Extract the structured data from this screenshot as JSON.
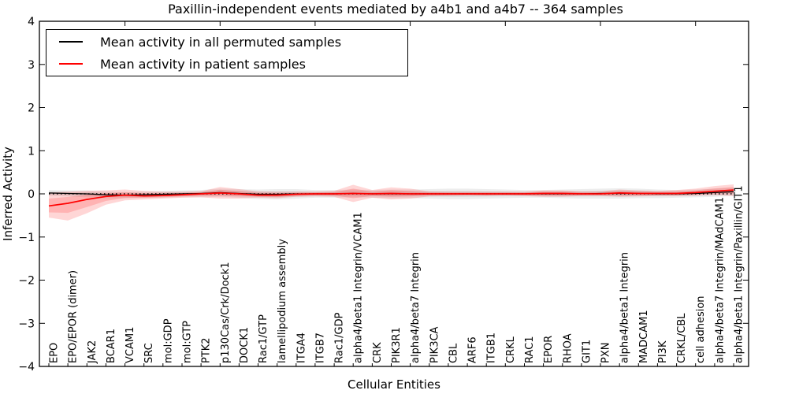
{
  "chart_data": {
    "type": "line",
    "title": "Paxillin-independent events mediated by a4b1 and a4b7 -- 364 samples",
    "xlabel": "Cellular Entities",
    "ylabel": "Inferred Activity",
    "ylim": [
      -4,
      4
    ],
    "yticks": [
      4,
      3,
      2,
      1,
      0,
      -1,
      -2,
      -3,
      -4
    ],
    "ytick_labels": [
      "4",
      "3",
      "2",
      "1",
      "0",
      "−1",
      "−2",
      "−3",
      "−4"
    ],
    "grid": false,
    "legend_position": "upper left",
    "zero_line": {
      "style": "dotted",
      "color": "#000000",
      "y": 0
    },
    "categories": [
      "EPO",
      "EPO/EPOR (dimer)",
      "JAK2",
      "BCAR1",
      "VCAM1",
      "SRC",
      "mol:GDP",
      "mol:GTP",
      "PTK2",
      "p130Cas/Crk/Dock1",
      "DOCK1",
      "Rac1/GTP",
      "lamellipodium assembly",
      "ITGA4",
      "ITGB7",
      "Rac1/GDP",
      "alpha4/beta1 Integrin/VCAM1",
      "CRK",
      "PIK3R1",
      "alpha4/beta7 Integrin",
      "PIK3CA",
      "CBL",
      "ARF6",
      "ITGB1",
      "CRKL",
      "RAC1",
      "EPOR",
      "RHOA",
      "GIT1",
      "PXN",
      "alpha4/beta1 Integrin",
      "MADCAM1",
      "PI3K",
      "CRKL/CBL",
      "cell adhesion",
      "alpha4/beta7 Integrin/MAdCAM1",
      "alpha4/beta1 Integrin/Paxillin/GIT1"
    ],
    "series": [
      {
        "name": "Mean activity in all permuted samples",
        "color": "#000000",
        "band_fill": "rgba(0,0,0,0.07)",
        "values": [
          0.02,
          0.01,
          0.0,
          -0.02,
          -0.03,
          -0.02,
          -0.01,
          0.0,
          0.01,
          0.03,
          0.01,
          -0.01,
          -0.01,
          0.0,
          0.0,
          0.0,
          0.01,
          0.0,
          0.0,
          0.0,
          0.0,
          0.0,
          0.0,
          0.0,
          0.0,
          0.0,
          0.0,
          0.0,
          0.0,
          0.01,
          0.01,
          0.01,
          0.0,
          0.0,
          0.01,
          0.03,
          0.05
        ],
        "band_lo": [
          -0.05,
          -0.06,
          -0.08,
          -0.1,
          -0.1,
          -0.09,
          -0.09,
          -0.08,
          -0.08,
          -0.07,
          -0.09,
          -0.12,
          -0.13,
          -0.11,
          -0.09,
          -0.09,
          -0.08,
          -0.09,
          -0.1,
          -0.1,
          -0.11,
          -0.12,
          -0.12,
          -0.11,
          -0.1,
          -0.09,
          -0.09,
          -0.1,
          -0.11,
          -0.11,
          -0.11,
          -0.1,
          -0.1,
          -0.09,
          -0.08,
          -0.07,
          -0.05
        ],
        "band_hi": [
          0.09,
          0.08,
          0.08,
          0.06,
          0.04,
          0.05,
          0.07,
          0.08,
          0.09,
          0.12,
          0.11,
          0.1,
          0.11,
          0.11,
          0.09,
          0.09,
          0.1,
          0.09,
          0.1,
          0.1,
          0.11,
          0.12,
          0.12,
          0.11,
          0.1,
          0.09,
          0.09,
          0.1,
          0.11,
          0.12,
          0.13,
          0.12,
          0.1,
          0.09,
          0.1,
          0.12,
          0.14
        ]
      },
      {
        "name": "Mean activity in patient samples",
        "color": "#ff0000",
        "band_fill": "rgba(255,0,0,0.16)",
        "values": [
          -0.28,
          -0.22,
          -0.13,
          -0.06,
          -0.03,
          -0.05,
          -0.04,
          -0.02,
          0.0,
          0.02,
          0.0,
          -0.03,
          -0.03,
          -0.01,
          0.0,
          0.0,
          0.01,
          0.0,
          0.01,
          0.0,
          0.0,
          0.0,
          0.0,
          0.0,
          0.0,
          0.0,
          0.01,
          0.01,
          0.0,
          0.0,
          0.02,
          0.01,
          0.01,
          0.01,
          0.03,
          0.06,
          0.09
        ],
        "band_lo": [
          -0.55,
          -0.62,
          -0.45,
          -0.25,
          -0.15,
          -0.13,
          -0.11,
          -0.09,
          -0.08,
          -0.11,
          -0.11,
          -0.09,
          -0.1,
          -0.07,
          -0.06,
          -0.07,
          -0.19,
          -0.09,
          -0.13,
          -0.11,
          -0.06,
          -0.05,
          -0.04,
          -0.05,
          -0.04,
          -0.05,
          -0.07,
          -0.07,
          -0.05,
          -0.05,
          -0.07,
          -0.06,
          -0.05,
          -0.05,
          -0.04,
          -0.03,
          -0.05
        ],
        "band_hi": [
          0.03,
          0.05,
          0.07,
          0.08,
          0.1,
          0.07,
          0.05,
          0.05,
          0.06,
          0.16,
          0.11,
          0.06,
          0.05,
          0.05,
          0.05,
          0.07,
          0.21,
          0.09,
          0.15,
          0.12,
          0.06,
          0.05,
          0.05,
          0.05,
          0.05,
          0.05,
          0.08,
          0.08,
          0.06,
          0.06,
          0.1,
          0.08,
          0.07,
          0.09,
          0.12,
          0.18,
          0.22
        ]
      }
    ]
  }
}
